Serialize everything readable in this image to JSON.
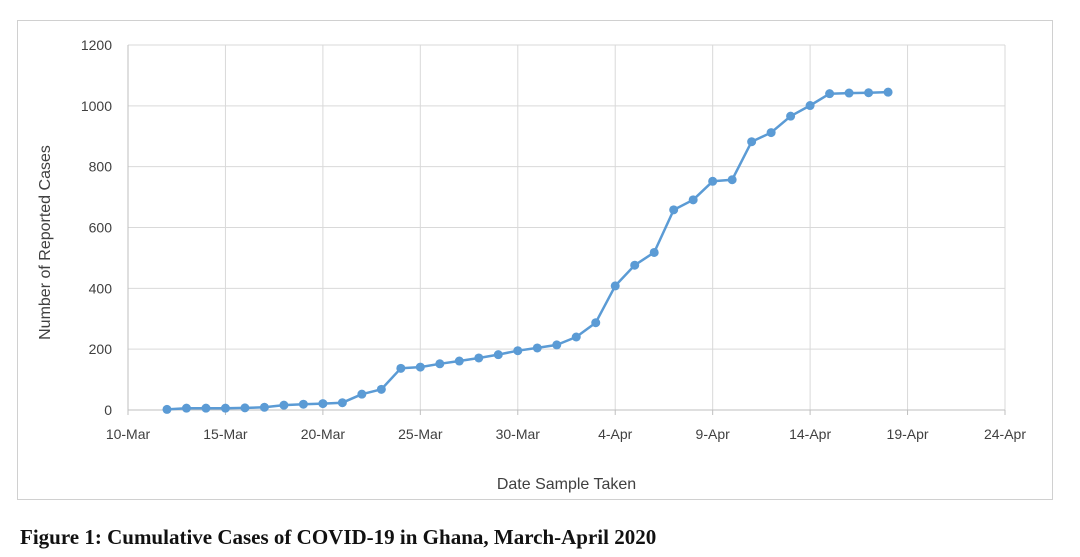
{
  "caption": "Figure 1: Cumulative Cases of COVID-19 in Ghana, March-April 2020",
  "chart_data": {
    "type": "line",
    "title": "",
    "xlabel": "Date Sample Taken",
    "ylabel": "Number of Reported Cases",
    "xlim": [
      "2020-03-10",
      "2020-04-24"
    ],
    "ylim": [
      0,
      1200
    ],
    "x_ticks": [
      "10-Mar",
      "15-Mar",
      "20-Mar",
      "25-Mar",
      "30-Mar",
      "4-Apr",
      "9-Apr",
      "14-Apr",
      "19-Apr",
      "24-Apr"
    ],
    "y_ticks": [
      "0",
      "200",
      "400",
      "600",
      "800",
      "1000",
      "1200"
    ],
    "grid": true,
    "legend": "none",
    "color": "#5b9bd5",
    "series": [
      {
        "x": [
          "2020-03-12",
          "2020-03-13",
          "2020-03-14",
          "2020-03-15",
          "2020-03-16",
          "2020-03-17",
          "2020-03-18",
          "2020-03-19",
          "2020-03-20",
          "2020-03-21",
          "2020-03-22",
          "2020-03-23",
          "2020-03-24",
          "2020-03-25",
          "2020-03-26",
          "2020-03-27",
          "2020-03-28",
          "2020-03-29",
          "2020-03-30",
          "2020-03-31",
          "2020-04-01",
          "2020-04-02",
          "2020-04-03",
          "2020-04-04",
          "2020-04-05",
          "2020-04-06",
          "2020-04-07",
          "2020-04-08",
          "2020-04-09",
          "2020-04-10",
          "2020-04-11",
          "2020-04-12",
          "2020-04-13",
          "2020-04-14",
          "2020-04-15",
          "2020-04-16",
          "2020-04-17",
          "2020-04-18"
        ],
        "values": [
          2,
          6,
          6,
          6,
          7,
          9,
          16,
          19,
          21,
          24,
          52,
          68,
          137,
          141,
          152,
          161,
          171,
          182,
          195,
          204,
          214,
          240,
          287,
          408,
          476,
          518,
          658,
          691,
          752,
          757,
          882,
          912,
          966,
          1001,
          1040,
          1042,
          1043,
          1045
        ]
      }
    ]
  }
}
